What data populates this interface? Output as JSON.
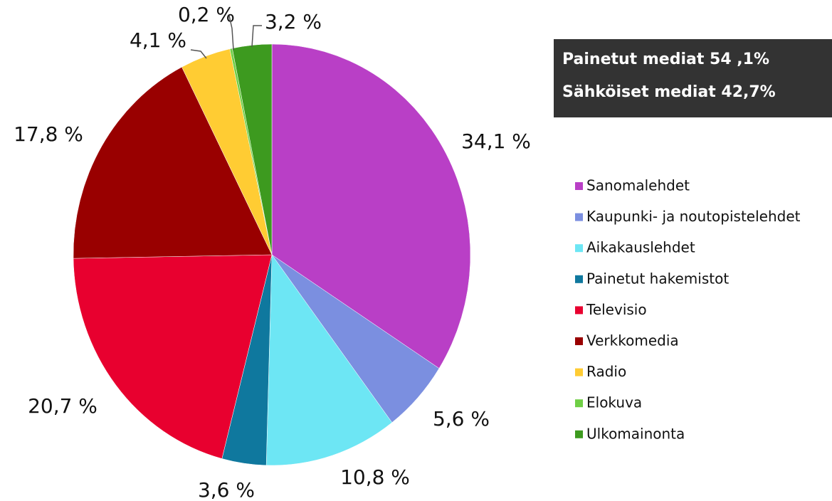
{
  "chart_data": {
    "type": "pie",
    "annotations": [
      "Painetut mediat 54 ,1%",
      "Sähköiset mediat 42,7%"
    ],
    "categories": [
      "Sanomalehdet",
      "Kaupunki- ja noutopistelehdet",
      "Aikakauslehdet",
      "Painetut hakemistot",
      "Televisio",
      "Verkkomedia",
      "Radio",
      "Elokuva",
      "Ulkomainonta"
    ],
    "values": [
      34.1,
      5.6,
      10.8,
      3.6,
      20.7,
      17.8,
      4.1,
      0.2,
      3.2
    ],
    "value_labels": [
      "34,1 %",
      "5,6 %",
      "10,8 %",
      "3,6 %",
      "20,7 %",
      "17,8 %",
      "4,1 %",
      "0,2 %",
      "3,2 %"
    ],
    "colors": [
      "#b93fc6",
      "#7b8fe0",
      "#6de6f4",
      "#0f789e",
      "#e8002f",
      "#990000",
      "#ffcc33",
      "#6fcf45",
      "#3d9a1f"
    ]
  }
}
